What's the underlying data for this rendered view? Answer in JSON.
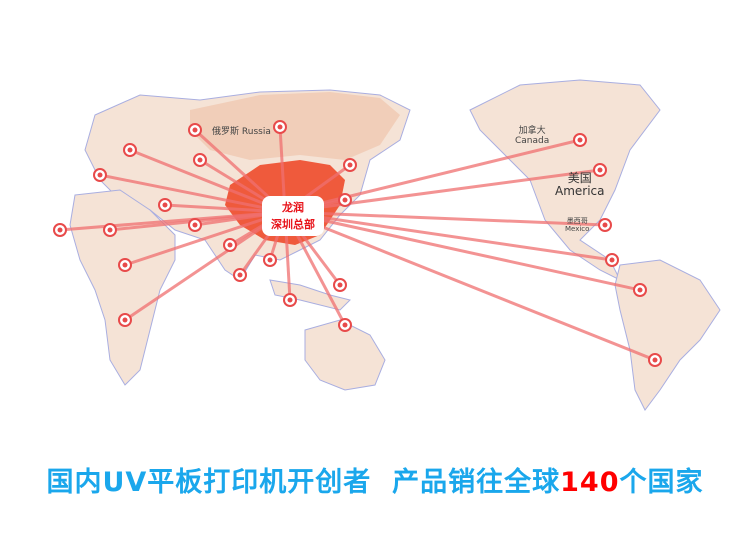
{
  "map": {
    "headquarters": {
      "line1": "龙润",
      "line2": "深圳总部"
    },
    "labels": {
      "canada_cn": "加拿大",
      "canada_en": "Canada",
      "usa_cn": "美国",
      "usa_en": "America",
      "mexico_cn": "墨西哥",
      "mexico_en": "Mexico",
      "russia_cn": "俄罗斯",
      "russia_en": "Russia"
    },
    "colors": {
      "land": "#f3dccd",
      "china": "#ef5a3c",
      "route": "#f07070",
      "pin": "#e84a4a",
      "border": "#9aa0d8"
    }
  },
  "slogan": {
    "part1": "国内UV平板打印机开创者",
    "part2": "产品销往全球",
    "count": "140",
    "part3": "个国家"
  }
}
